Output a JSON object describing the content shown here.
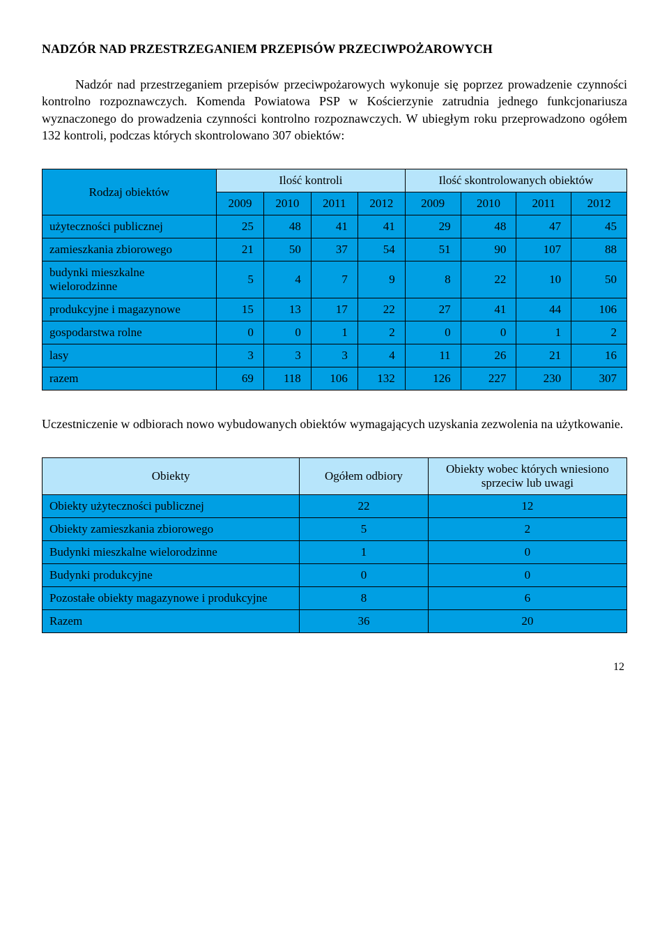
{
  "title": "NADZÓR NAD PRZESTRZEGANIEM PRZEPISÓW PRZECIWPOŻAROWYCH",
  "intro": "Nadzór nad przestrzeganiem przepisów przeciwpożarowych wykonuje się poprzez prowadzenie czynności kontrolno rozpoznawczych. Komenda Powiatowa PSP w Kościerzynie zatrudnia jednego funkcjonariusza wyznaczonego do prowadzenia czynności kontrolno rozpoznawczych. W ubiegłym roku przeprowadzono ogółem 132 kontroli, podczas których skontrolowano 307 obiektów:",
  "mid_para": "Uczestniczenie w odbiorach nowo wybudowanych obiektów wymagających uzyskania zezwolenia na użytkowanie.",
  "table1": {
    "header": {
      "rodzaj": "Rodzaj obiektów",
      "group1": "Ilość kontroli",
      "group2": "Ilość skontrolowanych obiektów",
      "years": [
        "2009",
        "2010",
        "2011",
        "2012",
        "2009",
        "2010",
        "2011",
        "2012"
      ]
    },
    "rows": [
      {
        "label": "użyteczności publicznej",
        "vals": [
          "25",
          "48",
          "41",
          "41",
          "29",
          "48",
          "47",
          "45"
        ]
      },
      {
        "label": "zamieszkania zbiorowego",
        "vals": [
          "21",
          "50",
          "37",
          "54",
          "51",
          "90",
          "107",
          "88"
        ]
      },
      {
        "label": "budynki mieszkalne wielorodzinne",
        "vals": [
          "5",
          "4",
          "7",
          "9",
          "8",
          "22",
          "10",
          "50"
        ]
      },
      {
        "label": "produkcyjne i magazynowe",
        "vals": [
          "15",
          "13",
          "17",
          "22",
          "27",
          "41",
          "44",
          "106"
        ]
      },
      {
        "label": "gospodarstwa rolne",
        "vals": [
          "0",
          "0",
          "1",
          "2",
          "0",
          "0",
          "1",
          "2"
        ]
      },
      {
        "label": "lasy",
        "vals": [
          "3",
          "3",
          "3",
          "4",
          "11",
          "26",
          "21",
          "16"
        ]
      },
      {
        "label": "razem",
        "vals": [
          "69",
          "118",
          "106",
          "132",
          "126",
          "227",
          "230",
          "307"
        ]
      }
    ],
    "colors": {
      "header_group_bg": "#b7e5fb",
      "cell_bg": "#009fe3",
      "border": "#000000",
      "text": "#000000"
    }
  },
  "table2": {
    "header": {
      "col1": "Obiekty",
      "col2": "Ogółem odbiory",
      "col3": "Obiekty wobec których wniesiono sprzeciw lub uwagi"
    },
    "rows": [
      {
        "label": "Obiekty użyteczności publicznej",
        "c1": "22",
        "c2": "12"
      },
      {
        "label": "Obiekty zamieszkania zbiorowego",
        "c1": "5",
        "c2": "2"
      },
      {
        "label": "Budynki mieszkalne wielorodzinne",
        "c1": "1",
        "c2": "0"
      },
      {
        "label": "Budynki produkcyjne",
        "c1": "0",
        "c2": "0"
      },
      {
        "label": "Pozostałe obiekty magazynowe i produkcyjne",
        "c1": "8",
        "c2": "6"
      },
      {
        "label": "Razem",
        "c1": "36",
        "c2": "20"
      }
    ],
    "colors": {
      "header_bg": "#b7e5fb",
      "cell_bg": "#009fe3",
      "border": "#000000",
      "text": "#000000"
    }
  },
  "page_number": "12"
}
